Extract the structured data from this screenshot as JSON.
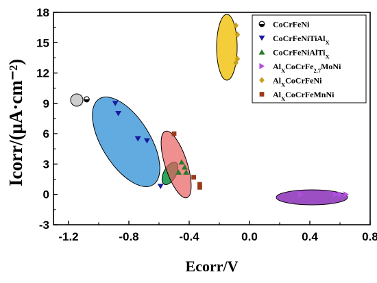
{
  "chart_data": {
    "type": "scatter",
    "xlabel": "Ecorr/V",
    "ylabel": "Icorr/(μA·cm⁻²)",
    "xlim": [
      -1.3,
      0.8
    ],
    "ylim": [
      -3,
      18
    ],
    "xticks": [
      "-1.2",
      "-0.8",
      "-0.4",
      "0.0",
      "0.4",
      "0.8"
    ],
    "xtick_values": [
      -1.2,
      -0.8,
      -0.4,
      0.0,
      0.4,
      0.8
    ],
    "yticks": [
      "-3",
      "0",
      "3",
      "6",
      "9",
      "12",
      "15",
      "18"
    ],
    "ytick_values": [
      -3,
      0,
      3,
      6,
      9,
      12,
      15,
      18
    ],
    "grid": false,
    "legend": "top-right",
    "series": [
      {
        "name": "CoCrFeNi",
        "name_parts": [
          [
            "CoCrFeNi",
            ""
          ]
        ],
        "marker": "half-circle",
        "color": "#000000",
        "ellipse_color": "#a6a6a6",
        "x": [
          -1.08
        ],
        "y": [
          9.4
        ]
      },
      {
        "name": "CoCrFeNiTiAlX",
        "name_parts": [
          [
            "CoCrFeNiTiAl",
            ""
          ],
          [
            "X",
            "sub"
          ]
        ],
        "marker": "triangle-down",
        "color": "#1a1a9e",
        "ellipse_color": "#2d8fd6",
        "x": [
          -0.89,
          -0.87,
          -0.74,
          -0.68,
          -0.59
        ],
        "y": [
          9.0,
          8.0,
          5.5,
          5.3,
          0.8
        ]
      },
      {
        "name": "CoCrFeNiAlTiX",
        "name_parts": [
          [
            "CoCrFeNiAlTi",
            ""
          ],
          [
            "X",
            "sub"
          ]
        ],
        "marker": "triangle-up",
        "color": "#2a7a2a",
        "ellipse_color": "#1a9a4a",
        "x": [
          -0.47,
          -0.45,
          -0.43,
          -0.42
        ],
        "y": [
          2.2,
          3.2,
          2.7,
          2.2
        ]
      },
      {
        "name": "AlXCoCrFe2.7MoNi",
        "name_parts": [
          [
            "Al",
            ""
          ],
          [
            "X",
            "sub"
          ],
          [
            "CoCrFe",
            ""
          ],
          [
            "2.7",
            "sub"
          ],
          [
            "MoNi",
            ""
          ]
        ],
        "marker": "triangle-right",
        "color": "#b24fe0",
        "ellipse_color": "#8a30b8",
        "x": [
          0.34,
          0.57,
          0.6,
          0.64
        ],
        "y": [
          0.0,
          0.0,
          0.0,
          0.0
        ]
      },
      {
        "name": "AlXCoCrFeNi",
        "name_parts": [
          [
            "Al",
            ""
          ],
          [
            "X",
            "sub"
          ],
          [
            "CoCrFeNi",
            ""
          ]
        ],
        "marker": "diamond",
        "color": "#c8a020",
        "ellipse_color": "#f2c418",
        "x": [
          -0.09,
          -0.08,
          -0.08,
          -0.09
        ],
        "y": [
          16.7,
          15.8,
          13.4,
          13.0
        ]
      },
      {
        "name": "AlXCoCrFeMnNi",
        "name_parts": [
          [
            "Al",
            ""
          ],
          [
            "X",
            "sub"
          ],
          [
            "CoCrFeMnNi",
            ""
          ]
        ],
        "marker": "square",
        "color": "#9a3a1a",
        "ellipse_color": "#e86060",
        "x": [
          -0.5,
          -0.37,
          -0.33,
          -0.33
        ],
        "y": [
          6.0,
          1.7,
          1.0,
          0.7
        ]
      }
    ]
  }
}
